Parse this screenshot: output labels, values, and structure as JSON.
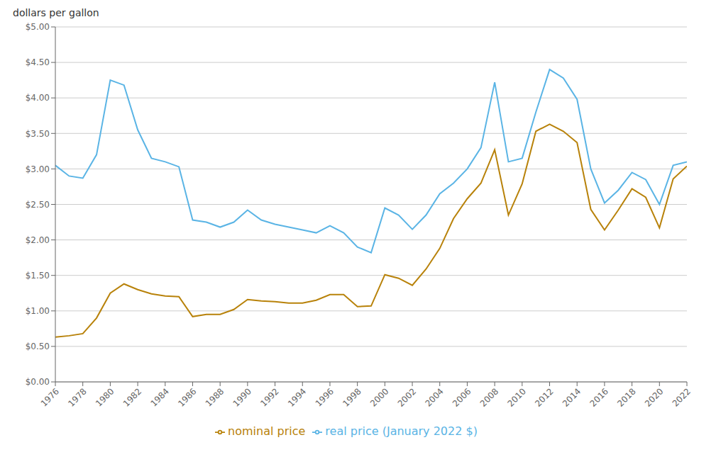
{
  "chart_data": {
    "type": "line",
    "ylabel": "dollars per gallon",
    "x": [
      1976,
      1977,
      1978,
      1979,
      1980,
      1981,
      1982,
      1983,
      1984,
      1985,
      1986,
      1987,
      1988,
      1989,
      1990,
      1991,
      1992,
      1993,
      1994,
      1995,
      1996,
      1997,
      1998,
      1999,
      2000,
      2001,
      2002,
      2003,
      2004,
      2005,
      2006,
      2007,
      2008,
      2009,
      2010,
      2011,
      2012,
      2013,
      2014,
      2015,
      2016,
      2017,
      2018,
      2019,
      2020,
      2021,
      2022
    ],
    "series": [
      {
        "name": "real price (January 2022 $)",
        "color": "#5ab4e5",
        "values": [
          3.05,
          2.9,
          2.87,
          3.2,
          4.25,
          4.18,
          3.55,
          3.15,
          3.1,
          3.03,
          2.28,
          2.25,
          2.18,
          2.25,
          2.42,
          2.28,
          2.22,
          2.18,
          2.14,
          2.1,
          2.2,
          2.1,
          1.9,
          1.82,
          2.45,
          2.35,
          2.15,
          2.35,
          2.65,
          2.8,
          3.0,
          3.3,
          4.22,
          3.1,
          3.15,
          3.8,
          4.4,
          4.28,
          3.98,
          3.0,
          2.52,
          2.7,
          2.95,
          2.85,
          2.5,
          3.05,
          3.1
        ]
      },
      {
        "name": "nominal price",
        "color": "#b8820a",
        "values": [
          0.63,
          0.65,
          0.68,
          0.9,
          1.25,
          1.38,
          1.3,
          1.24,
          1.21,
          1.2,
          0.92,
          0.95,
          0.95,
          1.02,
          1.16,
          1.14,
          1.13,
          1.11,
          1.11,
          1.15,
          1.23,
          1.23,
          1.06,
          1.07,
          1.51,
          1.46,
          1.36,
          1.59,
          1.88,
          2.3,
          2.58,
          2.8,
          3.27,
          2.35,
          2.79,
          3.53,
          3.63,
          3.53,
          3.37,
          2.43,
          2.14,
          2.42,
          2.72,
          2.6,
          2.17,
          2.86,
          3.04
        ]
      }
    ],
    "xlim": [
      1976,
      2022
    ],
    "xticks": [
      1976,
      1978,
      1980,
      1982,
      1984,
      1986,
      1988,
      1990,
      1992,
      1994,
      1996,
      1998,
      2000,
      2002,
      2004,
      2006,
      2008,
      2010,
      2012,
      2014,
      2016,
      2018,
      2020,
      2022
    ],
    "ylim": [
      0.0,
      5.0
    ],
    "yticks": [
      {
        "value": 0.0,
        "label": "$0.00"
      },
      {
        "value": 0.5,
        "label": "$0.50"
      },
      {
        "value": 1.0,
        "label": "$1.00"
      },
      {
        "value": 1.5,
        "label": "$1.50"
      },
      {
        "value": 2.0,
        "label": "$2.00"
      },
      {
        "value": 2.5,
        "label": "$2.50"
      },
      {
        "value": 3.0,
        "label": "$3.00"
      },
      {
        "value": 3.5,
        "label": "$3.50"
      },
      {
        "value": 4.0,
        "label": "$4.00"
      },
      {
        "value": 4.5,
        "label": "$4.50"
      },
      {
        "value": 5.0,
        "label": "$5.00"
      }
    ],
    "grid": true,
    "legend": "bottom"
  }
}
